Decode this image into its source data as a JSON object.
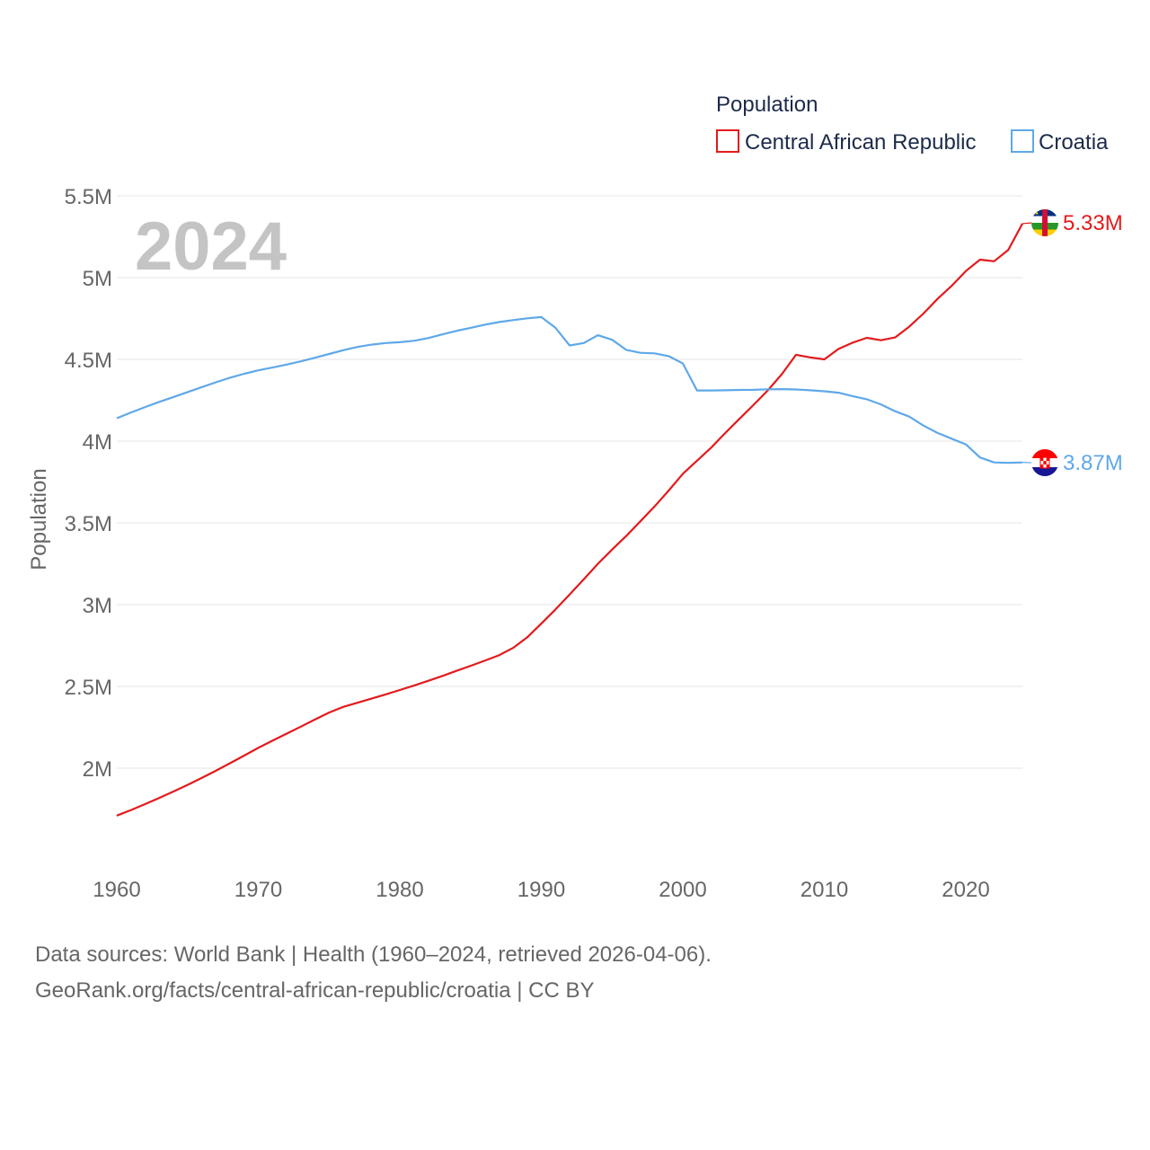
{
  "chart_data": {
    "type": "line",
    "title": "",
    "year_display": "2024",
    "legend_title": "Population",
    "xlabel": "",
    "ylabel": "Population",
    "xlim": [
      1960,
      2024
    ],
    "ylim": [
      1500000,
      5500000
    ],
    "x_ticks": [
      1960,
      1970,
      1980,
      1990,
      2000,
      2010,
      2020
    ],
    "y_ticks": [
      {
        "value": 2000000,
        "label": "2M"
      },
      {
        "value": 2500000,
        "label": "2.5M"
      },
      {
        "value": 3000000,
        "label": "3M"
      },
      {
        "value": 3500000,
        "label": "3.5M"
      },
      {
        "value": 4000000,
        "label": "4M"
      },
      {
        "value": 4500000,
        "label": "4.5M"
      },
      {
        "value": 5000000,
        "label": "5M"
      },
      {
        "value": 5500000,
        "label": "5.5M"
      }
    ],
    "x": [
      1960,
      1961,
      1962,
      1963,
      1964,
      1965,
      1966,
      1967,
      1968,
      1969,
      1970,
      1971,
      1972,
      1973,
      1974,
      1975,
      1976,
      1977,
      1978,
      1979,
      1980,
      1981,
      1982,
      1983,
      1984,
      1985,
      1986,
      1987,
      1988,
      1989,
      1990,
      1991,
      1992,
      1993,
      1994,
      1995,
      1996,
      1997,
      1998,
      1999,
      2000,
      2001,
      2002,
      2003,
      2004,
      2005,
      2006,
      2007,
      2008,
      2009,
      2010,
      2011,
      2012,
      2013,
      2014,
      2015,
      2016,
      2017,
      2018,
      2019,
      2020,
      2021,
      2022,
      2023,
      2024
    ],
    "series": [
      {
        "name": "Central African Republic",
        "color": "#e31a1c",
        "end_label": "5.33M",
        "flag": "central-african-republic-flag",
        "values": [
          1710000,
          1744000,
          1780000,
          1818000,
          1857000,
          1898000,
          1940000,
          1984000,
          2030000,
          2077000,
          2124000,
          2168000,
          2211000,
          2254000,
          2297000,
          2340000,
          2375000,
          2400000,
          2425000,
          2451000,
          2478000,
          2505000,
          2534000,
          2564000,
          2595000,
          2626000,
          2657000,
          2690000,
          2735000,
          2800000,
          2884000,
          2971000,
          3062000,
          3155000,
          3250000,
          3337000,
          3420000,
          3510000,
          3600000,
          3698000,
          3800000,
          3880000,
          3960000,
          4050000,
          4136000,
          4222000,
          4310000,
          4410000,
          4528000,
          4512000,
          4500000,
          4564000,
          4602000,
          4632000,
          4617000,
          4634000,
          4700000,
          4780000,
          4870000,
          4950000,
          5040000,
          5110000,
          5100000,
          5170000,
          5330000
        ]
      },
      {
        "name": "Croatia",
        "color": "#5fa8e8",
        "end_label": "3.87M",
        "flag": "croatia-flag",
        "values": [
          4140000,
          4175000,
          4208000,
          4240000,
          4270000,
          4300000,
          4330000,
          4360000,
          4388000,
          4412000,
          4433000,
          4450000,
          4468000,
          4488000,
          4510000,
          4533000,
          4556000,
          4576000,
          4590000,
          4600000,
          4605000,
          4614000,
          4630000,
          4653000,
          4674000,
          4693000,
          4712000,
          4728000,
          4740000,
          4751000,
          4759000,
          4693000,
          4585000,
          4600000,
          4648000,
          4620000,
          4558000,
          4540000,
          4537000,
          4520000,
          4475000,
          4310000,
          4310000,
          4311000,
          4313000,
          4314000,
          4317000,
          4318000,
          4316000,
          4311000,
          4305000,
          4296000,
          4275000,
          4256000,
          4225000,
          4183000,
          4150000,
          4095000,
          4050000,
          4015000,
          3980000,
          3900000,
          3870000,
          3867000,
          3870000
        ]
      }
    ]
  },
  "footer": {
    "line1": "Data sources: World Bank | Health (1960–2024, retrieved 2026-04-06).",
    "line2": "GeoRank.org/facts/central-african-republic/croatia | CC BY"
  }
}
